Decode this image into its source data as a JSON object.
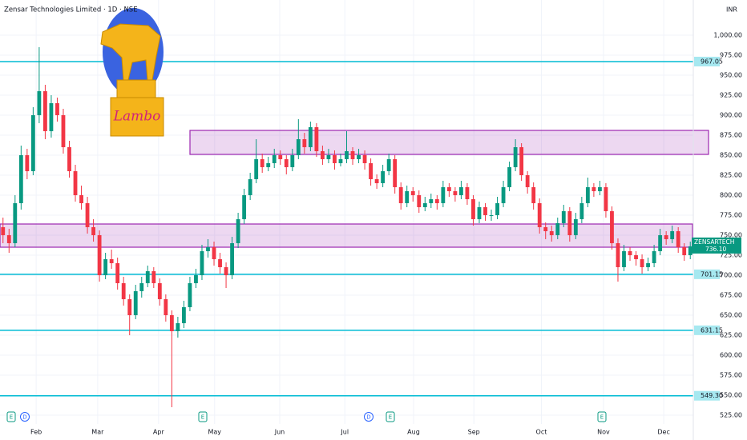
{
  "chart_data": {
    "type": "candlestick",
    "title": "Zensar Technologies Limited · 1D · NSE",
    "currency": "INR",
    "logo_text": "Lambo",
    "symbol": "ZENSARTECH",
    "last_price": {
      "value": 736.1,
      "label": "736.10"
    },
    "up_color": "#089981",
    "down_color": "#f23645",
    "level_color": "#00bcd4",
    "zone_color": "#9c27b0",
    "grid": true,
    "ylim": [
      514,
      1044
    ],
    "xlim": [
      -0.5,
      114.5
    ],
    "yticks": [
      {
        "value": 1000,
        "label": "1,000.00"
      },
      {
        "value": 975,
        "label": "975.00"
      },
      {
        "value": 950,
        "label": "950.00"
      },
      {
        "value": 925,
        "label": "925.00"
      },
      {
        "value": 900,
        "label": "900.00"
      },
      {
        "value": 875,
        "label": "875.00"
      },
      {
        "value": 850,
        "label": "850.00"
      },
      {
        "value": 825,
        "label": "825.00"
      },
      {
        "value": 800,
        "label": "800.00"
      },
      {
        "value": 775,
        "label": "775.00"
      },
      {
        "value": 750,
        "label": "750.00"
      },
      {
        "value": 725,
        "label": "725.00"
      },
      {
        "value": 700,
        "label": "700.00"
      },
      {
        "value": 675,
        "label": "675.00"
      },
      {
        "value": 650,
        "label": "650.00"
      },
      {
        "value": 625,
        "label": "625.00"
      },
      {
        "value": 600,
        "label": "600.00"
      },
      {
        "value": 575,
        "label": "575.00"
      },
      {
        "value": 550,
        "label": "550.00"
      },
      {
        "value": 525,
        "label": "525.00"
      }
    ],
    "xticks": [
      {
        "value": 5.5,
        "label": "Feb"
      },
      {
        "value": 15.7,
        "label": "Mar"
      },
      {
        "value": 25.8,
        "label": "Apr"
      },
      {
        "value": 35.1,
        "label": "May"
      },
      {
        "value": 45.9,
        "label": "Jun"
      },
      {
        "value": 56.7,
        "label": "Jul"
      },
      {
        "value": 68.1,
        "label": "Aug"
      },
      {
        "value": 78.1,
        "label": "Sep"
      },
      {
        "value": 89.3,
        "label": "Oct"
      },
      {
        "value": 99.6,
        "label": "Nov"
      },
      {
        "value": 109.6,
        "label": "Dec"
      }
    ],
    "levels": [
      {
        "value": 967.05,
        "label": "967.05"
      },
      {
        "value": 701.15,
        "label": "701.15"
      },
      {
        "value": 631.15,
        "label": "631.15"
      },
      {
        "value": 549.3,
        "label": "549.30"
      }
    ],
    "zones": [
      {
        "low": 851,
        "high": 881
      },
      {
        "low": 735,
        "high": 764
      }
    ],
    "events": [
      "E",
      "D",
      "E",
      "D",
      "E",
      "E"
    ],
    "ohlc": [
      [
        760,
        772,
        740,
        750
      ],
      [
        750,
        758,
        728,
        740
      ],
      [
        740,
        800,
        735,
        790
      ],
      [
        790,
        862,
        782,
        850
      ],
      [
        850,
        858,
        820,
        830
      ],
      [
        830,
        910,
        825,
        900
      ],
      [
        900,
        985,
        890,
        930
      ],
      [
        930,
        938,
        870,
        880
      ],
      [
        880,
        925,
        872,
        915
      ],
      [
        915,
        922,
        892,
        900
      ],
      [
        900,
        908,
        852,
        860
      ],
      [
        860,
        868,
        822,
        830
      ],
      [
        830,
        838,
        792,
        800
      ],
      [
        800,
        812,
        782,
        790
      ],
      [
        790,
        798,
        752,
        760
      ],
      [
        760,
        770,
        742,
        750
      ],
      [
        750,
        756,
        692,
        700
      ],
      [
        700,
        728,
        695,
        720
      ],
      [
        720,
        732,
        708,
        715
      ],
      [
        715,
        722,
        682,
        690
      ],
      [
        690,
        698,
        662,
        670
      ],
      [
        670,
        676,
        625,
        650
      ],
      [
        650,
        688,
        645,
        680
      ],
      [
        680,
        698,
        672,
        690
      ],
      [
        690,
        712,
        685,
        705
      ],
      [
        705,
        710,
        684,
        690
      ],
      [
        690,
        696,
        662,
        670
      ],
      [
        670,
        676,
        642,
        650
      ],
      [
        650,
        656,
        535,
        630
      ],
      [
        630,
        648,
        622,
        640
      ],
      [
        640,
        668,
        634,
        660
      ],
      [
        660,
        698,
        655,
        690
      ],
      [
        690,
        708,
        684,
        700
      ],
      [
        700,
        738,
        694,
        730
      ],
      [
        730,
        745,
        722,
        735
      ],
      [
        735,
        742,
        712,
        720
      ],
      [
        720,
        728,
        702,
        710
      ],
      [
        710,
        716,
        684,
        700
      ],
      [
        700,
        748,
        695,
        740
      ],
      [
        740,
        778,
        734,
        770
      ],
      [
        770,
        808,
        764,
        800
      ],
      [
        800,
        828,
        794,
        820
      ],
      [
        820,
        870,
        815,
        845
      ],
      [
        845,
        852,
        828,
        835
      ],
      [
        835,
        848,
        830,
        840
      ],
      [
        840,
        858,
        834,
        850
      ],
      [
        850,
        856,
        838,
        845
      ],
      [
        845,
        850,
        826,
        835
      ],
      [
        835,
        858,
        830,
        850
      ],
      [
        850,
        895,
        845,
        870
      ],
      [
        870,
        878,
        852,
        860
      ],
      [
        860,
        892,
        855,
        885
      ],
      [
        885,
        890,
        848,
        855
      ],
      [
        855,
        862,
        838,
        845
      ],
      [
        845,
        858,
        840,
        850
      ],
      [
        850,
        856,
        832,
        840
      ],
      [
        840,
        852,
        836,
        845
      ],
      [
        845,
        880,
        840,
        855
      ],
      [
        855,
        860,
        838,
        845
      ],
      [
        845,
        858,
        840,
        850
      ],
      [
        850,
        856,
        832,
        840
      ],
      [
        840,
        846,
        812,
        820
      ],
      [
        820,
        826,
        808,
        815
      ],
      [
        815,
        838,
        810,
        830
      ],
      [
        830,
        852,
        825,
        845
      ],
      [
        845,
        850,
        802,
        810
      ],
      [
        810,
        816,
        782,
        790
      ],
      [
        790,
        812,
        785,
        805
      ],
      [
        805,
        810,
        792,
        800
      ],
      [
        800,
        806,
        778,
        785
      ],
      [
        785,
        798,
        780,
        790
      ],
      [
        790,
        802,
        784,
        795
      ],
      [
        795,
        800,
        782,
        790
      ],
      [
        790,
        818,
        785,
        810
      ],
      [
        810,
        815,
        798,
        805
      ],
      [
        805,
        810,
        792,
        800
      ],
      [
        800,
        818,
        795,
        810
      ],
      [
        810,
        815,
        788,
        795
      ],
      [
        795,
        800,
        762,
        770
      ],
      [
        770,
        792,
        765,
        785
      ],
      [
        785,
        790,
        768,
        775
      ],
      [
        775,
        782,
        768,
        775
      ],
      [
        775,
        798,
        770,
        790
      ],
      [
        790,
        818,
        785,
        810
      ],
      [
        810,
        842,
        805,
        835
      ],
      [
        835,
        870,
        830,
        860
      ],
      [
        860,
        865,
        818,
        825
      ],
      [
        825,
        830,
        802,
        810
      ],
      [
        810,
        816,
        782,
        790
      ],
      [
        790,
        796,
        752,
        760
      ],
      [
        760,
        766,
        745,
        755
      ],
      [
        755,
        762,
        742,
        750
      ],
      [
        750,
        772,
        745,
        765
      ],
      [
        765,
        788,
        760,
        780
      ],
      [
        780,
        785,
        742,
        750
      ],
      [
        750,
        778,
        745,
        770
      ],
      [
        770,
        798,
        765,
        790
      ],
      [
        790,
        822,
        785,
        810
      ],
      [
        810,
        815,
        798,
        805
      ],
      [
        805,
        818,
        800,
        810
      ],
      [
        810,
        815,
        772,
        780
      ],
      [
        780,
        786,
        732,
        740
      ],
      [
        740,
        746,
        692,
        710
      ],
      [
        710,
        738,
        705,
        730
      ],
      [
        730,
        735,
        718,
        725
      ],
      [
        725,
        730,
        712,
        720
      ],
      [
        720,
        726,
        702,
        710
      ],
      [
        710,
        722,
        705,
        715
      ],
      [
        715,
        738,
        710,
        730
      ],
      [
        730,
        758,
        725,
        750
      ],
      [
        750,
        755,
        738,
        745
      ],
      [
        745,
        762,
        740,
        755
      ],
      [
        755,
        760,
        728,
        735
      ],
      [
        735,
        740,
        718,
        725
      ],
      [
        725,
        742,
        720,
        736.1
      ]
    ]
  }
}
